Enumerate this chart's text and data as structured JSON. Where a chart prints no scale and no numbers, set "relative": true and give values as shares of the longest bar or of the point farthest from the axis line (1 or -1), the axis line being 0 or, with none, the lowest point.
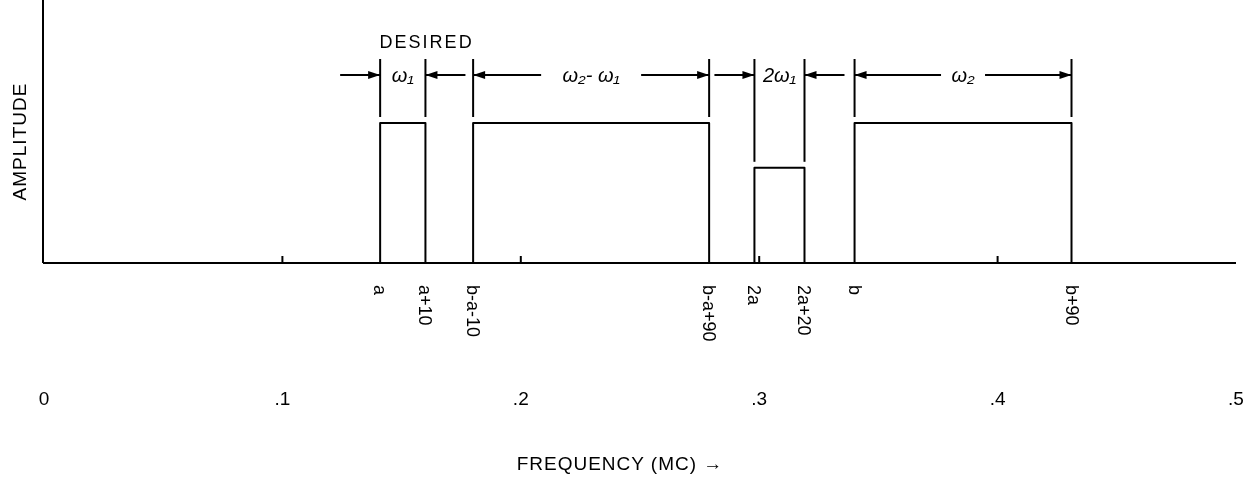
{
  "chart_data": {
    "type": "step",
    "relative": true,
    "title": "DESIRED",
    "xlabel": "FREQUENCY  (MC) →",
    "ylabel": "AMPLITUDE",
    "xlim": [
      0,
      0.5
    ],
    "xticks": [
      {
        "value": 0,
        "label": "0"
      },
      {
        "value": 0.1,
        "label": ".1"
      },
      {
        "value": 0.2,
        "label": ".2"
      },
      {
        "value": 0.3,
        "label": ".3"
      },
      {
        "value": 0.4,
        "label": ".4"
      },
      {
        "value": 0.5,
        "label": ".5"
      }
    ],
    "series": [
      {
        "color": "#000000",
        "x": [
          0,
          0.141,
          0.16,
          0.18,
          0.279,
          0.298,
          0.319,
          0.34,
          0.431,
          0.5
        ],
        "values": [
          0,
          1,
          0,
          1,
          0,
          0.68,
          0,
          1,
          0,
          0
        ]
      }
    ],
    "line_style": "solid",
    "annotations": [
      "ω₁",
      "ω₂- ω₁",
      "2ω₁",
      "ω₂",
      {
        "text": "a",
        "x": 0.141,
        "y": 0
      },
      {
        "text": "a+10",
        "x": 0.16,
        "y": 0
      },
      {
        "text": "b-a-10",
        "x": 0.18,
        "y": 0
      },
      {
        "text": "b-a+90",
        "x": 0.279,
        "y": 0
      },
      {
        "text": "2a",
        "x": 0.298,
        "y": 0
      },
      {
        "text": "2a+20",
        "x": 0.319,
        "y": 0
      },
      {
        "text": "b",
        "x": 0.34,
        "y": 0
      },
      {
        "text": "b+90",
        "x": 0.431,
        "y": 0
      }
    ]
  }
}
